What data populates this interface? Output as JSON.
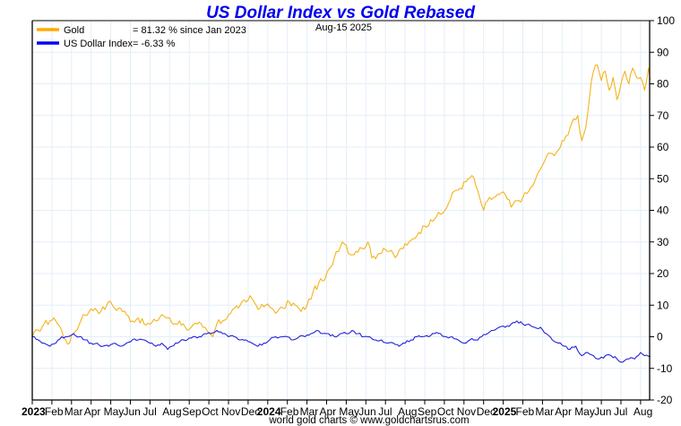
{
  "chart_data": {
    "type": "line",
    "title": "US Dollar Index vs Gold Rebased",
    "date_label": "Aug-15  2025",
    "credit": "world gold charts © www.goldchartsrus.com",
    "xlabel": "",
    "ylabel": "",
    "ylim": [
      -20,
      100
    ],
    "y_ticks": [
      100,
      90,
      80,
      70,
      60,
      50,
      40,
      30,
      20,
      10,
      0,
      -10,
      -20
    ],
    "y_axis_position": "right",
    "grid": true,
    "legend_position": "top-left",
    "x_tick_labels": [
      {
        "label": "2023",
        "year": true
      },
      {
        "label": "Feb"
      },
      {
        "label": "Mar"
      },
      {
        "label": "Apr"
      },
      {
        "label": "May"
      },
      {
        "label": "Jun"
      },
      {
        "label": "Jul"
      },
      {
        "label": "Aug"
      },
      {
        "label": "Sep"
      },
      {
        "label": "Oct"
      },
      {
        "label": "Nov"
      },
      {
        "label": "Dec"
      },
      {
        "label": "2024",
        "year": true
      },
      {
        "label": "Feb"
      },
      {
        "label": "Mar"
      },
      {
        "label": "Apr"
      },
      {
        "label": "May"
      },
      {
        "label": "Jun"
      },
      {
        "label": "Jul"
      },
      {
        "label": "Aug"
      },
      {
        "label": "Sep"
      },
      {
        "label": "Oct"
      },
      {
        "label": "Nov"
      },
      {
        "label": "Dec"
      },
      {
        "label": "2025",
        "year": true
      },
      {
        "label": "Feb"
      },
      {
        "label": "Mar"
      },
      {
        "label": "Apr"
      },
      {
        "label": "May"
      },
      {
        "label": "Jun"
      },
      {
        "label": "Jul"
      },
      {
        "label": "Aug"
      }
    ],
    "x_unit": "months since Jan 2023",
    "x_max": 31.5,
    "series": [
      {
        "name": "Gold",
        "legend_label": "Gold",
        "legend_value": "= 81.32 % since Jan 2023",
        "color": "#f5b31b",
        "legend_color": "#ffaa00",
        "points": [
          [
            0,
            0
          ],
          [
            0.3,
            2
          ],
          [
            0.6,
            4
          ],
          [
            0.9,
            5
          ],
          [
            1.1,
            6
          ],
          [
            1.3,
            4
          ],
          [
            1.5,
            2
          ],
          [
            1.7,
            -1
          ],
          [
            1.9,
            -2
          ],
          [
            2.1,
            1
          ],
          [
            2.4,
            4
          ],
          [
            2.6,
            7
          ],
          [
            2.9,
            8
          ],
          [
            3.2,
            9
          ],
          [
            3.5,
            8
          ],
          [
            3.8,
            10
          ],
          [
            4.0,
            11
          ],
          [
            4.2,
            9
          ],
          [
            4.5,
            9
          ],
          [
            4.8,
            7
          ],
          [
            5.1,
            5
          ],
          [
            5.4,
            6
          ],
          [
            5.7,
            4
          ],
          [
            6.0,
            4
          ],
          [
            6.3,
            5
          ],
          [
            6.6,
            7
          ],
          [
            6.9,
            6
          ],
          [
            7.2,
            4
          ],
          [
            7.5,
            5
          ],
          [
            7.8,
            3
          ],
          [
            8.1,
            3
          ],
          [
            8.4,
            4
          ],
          [
            8.7,
            3
          ],
          [
            9.0,
            1
          ],
          [
            9.2,
            0
          ],
          [
            9.4,
            4
          ],
          [
            9.7,
            5
          ],
          [
            10.0,
            7
          ],
          [
            10.3,
            9
          ],
          [
            10.6,
            10
          ],
          [
            10.9,
            11
          ],
          [
            11.1,
            13
          ],
          [
            11.3,
            11
          ],
          [
            11.6,
            9
          ],
          [
            11.9,
            10
          ],
          [
            12.2,
            9
          ],
          [
            12.5,
            8
          ],
          [
            12.8,
            9
          ],
          [
            13.1,
            11
          ],
          [
            13.4,
            10
          ],
          [
            13.7,
            8
          ],
          [
            14.0,
            10
          ],
          [
            14.3,
            14
          ],
          [
            14.6,
            17
          ],
          [
            14.9,
            18
          ],
          [
            15.2,
            22
          ],
          [
            15.5,
            27
          ],
          [
            15.8,
            30
          ],
          [
            16.0,
            29
          ],
          [
            16.2,
            26
          ],
          [
            16.5,
            27
          ],
          [
            16.8,
            28
          ],
          [
            17.1,
            30
          ],
          [
            17.3,
            25
          ],
          [
            17.6,
            26
          ],
          [
            17.9,
            28
          ],
          [
            18.2,
            27
          ],
          [
            18.5,
            25
          ],
          [
            18.8,
            28
          ],
          [
            19.1,
            29
          ],
          [
            19.4,
            31
          ],
          [
            19.7,
            33
          ],
          [
            20.0,
            35
          ],
          [
            20.3,
            37
          ],
          [
            20.6,
            38
          ],
          [
            20.9,
            39
          ],
          [
            21.2,
            42
          ],
          [
            21.5,
            46
          ],
          [
            21.8,
            47
          ],
          [
            22.1,
            49
          ],
          [
            22.4,
            51
          ],
          [
            22.6,
            48
          ],
          [
            22.8,
            44
          ],
          [
            23.0,
            40
          ],
          [
            23.2,
            43
          ],
          [
            23.5,
            44
          ],
          [
            23.8,
            45
          ],
          [
            24.1,
            45
          ],
          [
            24.4,
            41
          ],
          [
            24.7,
            43
          ],
          [
            25.0,
            44
          ],
          [
            25.3,
            46
          ],
          [
            25.6,
            49
          ],
          [
            25.9,
            53
          ],
          [
            26.2,
            57
          ],
          [
            26.5,
            58
          ],
          [
            26.8,
            59
          ],
          [
            27.1,
            62
          ],
          [
            27.4,
            66
          ],
          [
            27.6,
            69
          ],
          [
            27.8,
            70
          ],
          [
            28.0,
            62
          ],
          [
            28.2,
            66
          ],
          [
            28.4,
            76
          ],
          [
            28.6,
            84
          ],
          [
            28.8,
            86
          ],
          [
            29.0,
            81
          ],
          [
            29.2,
            84
          ],
          [
            29.4,
            78
          ],
          [
            29.6,
            82
          ],
          [
            29.8,
            75
          ],
          [
            30.0,
            80
          ],
          [
            30.2,
            84
          ],
          [
            30.4,
            80
          ],
          [
            30.6,
            85
          ],
          [
            30.8,
            82
          ],
          [
            31.0,
            82
          ],
          [
            31.2,
            78
          ],
          [
            31.4,
            85
          ],
          [
            31.5,
            81.3
          ]
        ]
      },
      {
        "name": "US Dollar Index",
        "legend_label": "US Dollar Index",
        "legend_value": "= -6.33 %",
        "color": "#2222dd",
        "legend_color": "#0000ff",
        "points": [
          [
            0,
            0
          ],
          [
            0.3,
            -1
          ],
          [
            0.6,
            -2
          ],
          [
            0.9,
            -3
          ],
          [
            1.2,
            -2
          ],
          [
            1.5,
            0
          ],
          [
            1.8,
            0
          ],
          [
            2.1,
            1
          ],
          [
            2.4,
            0
          ],
          [
            2.7,
            -1
          ],
          [
            3.0,
            -2
          ],
          [
            3.3,
            -2
          ],
          [
            3.6,
            -3
          ],
          [
            3.9,
            -3
          ],
          [
            4.2,
            -2
          ],
          [
            4.5,
            -3
          ],
          [
            4.8,
            -2
          ],
          [
            5.1,
            -1
          ],
          [
            5.4,
            -1
          ],
          [
            5.7,
            -1
          ],
          [
            6.0,
            -2
          ],
          [
            6.3,
            -3
          ],
          [
            6.6,
            -2
          ],
          [
            6.9,
            -4
          ],
          [
            7.1,
            -3
          ],
          [
            7.3,
            -2
          ],
          [
            7.6,
            -1
          ],
          [
            7.9,
            -1
          ],
          [
            8.2,
            0
          ],
          [
            8.5,
            0
          ],
          [
            8.8,
            1
          ],
          [
            9.1,
            1
          ],
          [
            9.4,
            2
          ],
          [
            9.7,
            1
          ],
          [
            10.0,
            0
          ],
          [
            10.3,
            0
          ],
          [
            10.6,
            -1
          ],
          [
            10.9,
            -1
          ],
          [
            11.2,
            -2
          ],
          [
            11.5,
            -3
          ],
          [
            11.8,
            -2
          ],
          [
            12.1,
            -1
          ],
          [
            12.4,
            0
          ],
          [
            12.7,
            0
          ],
          [
            13.0,
            0
          ],
          [
            13.3,
            -1
          ],
          [
            13.6,
            0
          ],
          [
            13.9,
            0
          ],
          [
            14.2,
            1
          ],
          [
            14.5,
            2
          ],
          [
            14.8,
            1
          ],
          [
            15.1,
            1
          ],
          [
            15.4,
            0
          ],
          [
            15.7,
            1
          ],
          [
            16.0,
            1
          ],
          [
            16.3,
            2
          ],
          [
            16.6,
            1
          ],
          [
            16.9,
            0
          ],
          [
            17.2,
            0
          ],
          [
            17.5,
            -1
          ],
          [
            17.8,
            -1
          ],
          [
            18.1,
            -2
          ],
          [
            18.4,
            -2
          ],
          [
            18.7,
            -3
          ],
          [
            19.0,
            -2
          ],
          [
            19.3,
            -1
          ],
          [
            19.6,
            0
          ],
          [
            19.9,
            0
          ],
          [
            20.2,
            0
          ],
          [
            20.5,
            1
          ],
          [
            20.8,
            1
          ],
          [
            21.1,
            0
          ],
          [
            21.4,
            0
          ],
          [
            21.7,
            -1
          ],
          [
            22.0,
            -2
          ],
          [
            22.3,
            -1
          ],
          [
            22.6,
            -1
          ],
          [
            22.9,
            0
          ],
          [
            23.2,
            1
          ],
          [
            23.5,
            2
          ],
          [
            23.8,
            3
          ],
          [
            24.1,
            3
          ],
          [
            24.4,
            4
          ],
          [
            24.7,
            5
          ],
          [
            25.0,
            4
          ],
          [
            25.3,
            4
          ],
          [
            25.6,
            3
          ],
          [
            25.9,
            3
          ],
          [
            26.2,
            1
          ],
          [
            26.5,
            -1
          ],
          [
            26.8,
            -2
          ],
          [
            27.1,
            -3
          ],
          [
            27.4,
            -4
          ],
          [
            27.7,
            -3
          ],
          [
            28.0,
            -6
          ],
          [
            28.3,
            -5
          ],
          [
            28.6,
            -6
          ],
          [
            28.9,
            -7
          ],
          [
            29.2,
            -6
          ],
          [
            29.5,
            -6
          ],
          [
            29.8,
            -7
          ],
          [
            30.1,
            -8
          ],
          [
            30.4,
            -7
          ],
          [
            30.7,
            -7
          ],
          [
            31.0,
            -5
          ],
          [
            31.2,
            -6
          ],
          [
            31.5,
            -6.3
          ]
        ]
      }
    ]
  }
}
